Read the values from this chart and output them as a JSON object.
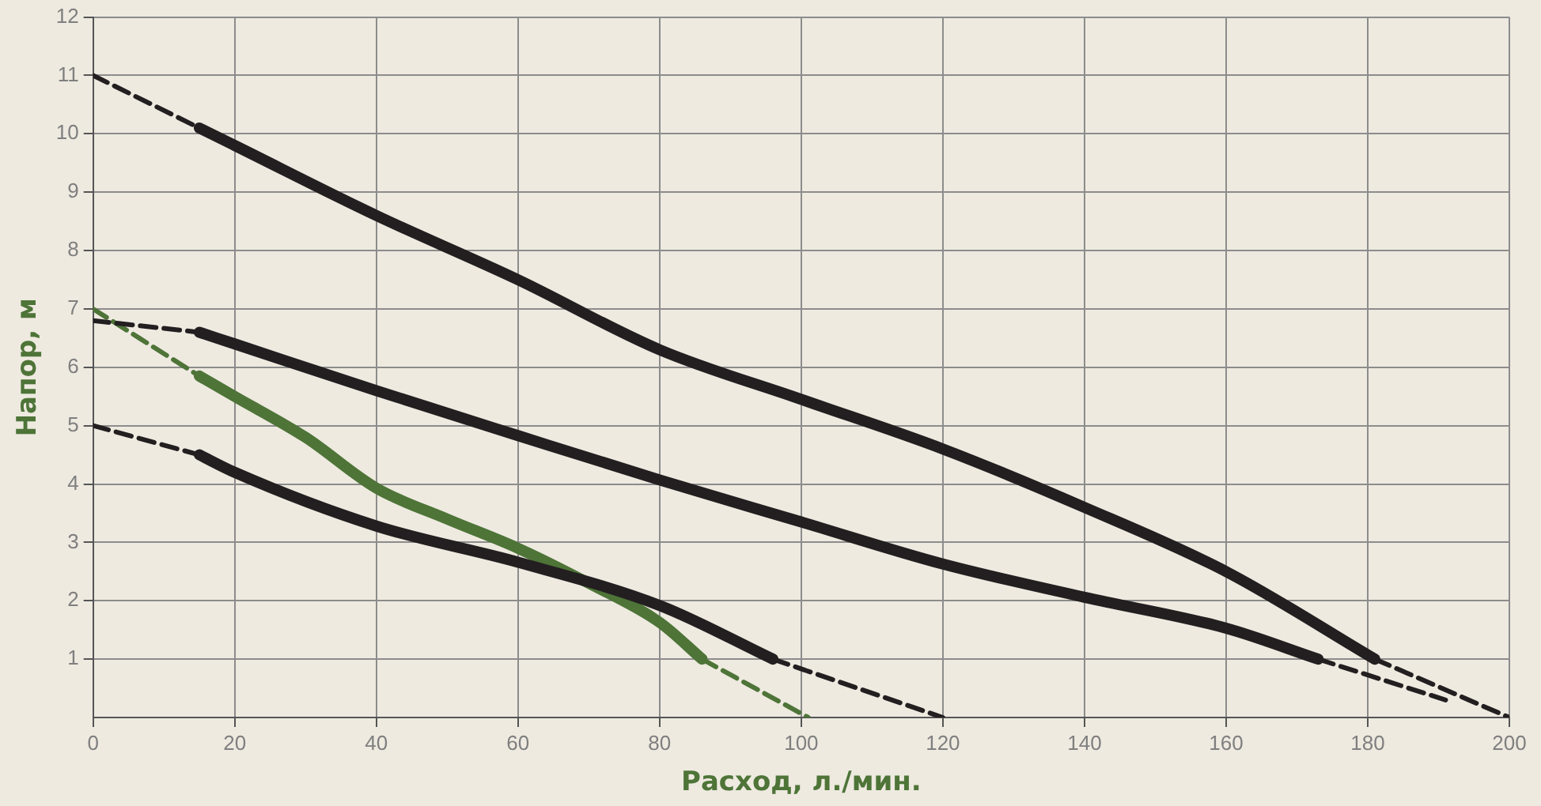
{
  "chart_data": {
    "type": "line",
    "xlabel": "Расход, л./мин.",
    "ylabel": "Напор, м",
    "xlim": [
      0,
      200
    ],
    "xticks": [
      0,
      20,
      40,
      60,
      80,
      100,
      120,
      140,
      160,
      180,
      200
    ],
    "ylim": [
      0,
      12
    ],
    "yticks": [
      1,
      2,
      3,
      4,
      5,
      6,
      7,
      8,
      9,
      10,
      11,
      12
    ],
    "grid": true,
    "legend": false,
    "marker": "none",
    "series": [
      {
        "color": "#231f20",
        "line_style": "dashed",
        "x": [
          0,
          15
        ],
        "values": [
          11,
          10.1
        ]
      },
      {
        "color": "#231f20",
        "line_style": "solid",
        "x": [
          15,
          20,
          40,
          60,
          80,
          100,
          120,
          140,
          160,
          181
        ],
        "values": [
          10.1,
          9.8,
          8.6,
          7.5,
          6.3,
          5.45,
          4.6,
          3.6,
          2.5,
          1.0
        ]
      },
      {
        "color": "#231f20",
        "line_style": "dashed",
        "x": [
          181,
          200
        ],
        "values": [
          1.0,
          0
        ]
      },
      {
        "color": "#231f20",
        "line_style": "dashed",
        "x": [
          0,
          15
        ],
        "values": [
          6.8,
          6.6
        ]
      },
      {
        "color": "#231f20",
        "line_style": "solid",
        "x": [
          15,
          20,
          40,
          60,
          80,
          100,
          120,
          140,
          160,
          173
        ],
        "values": [
          6.6,
          6.4,
          5.6,
          4.83,
          4.07,
          3.35,
          2.63,
          2.06,
          1.53,
          1.0
        ]
      },
      {
        "color": "#231f20",
        "line_style": "dashed",
        "x": [
          173,
          191
        ],
        "values": [
          1.0,
          0.3
        ]
      },
      {
        "color": "#231f20",
        "line_style": "dashed",
        "x": [
          0,
          15
        ],
        "values": [
          5,
          4.5
        ]
      },
      {
        "color": "#231f20",
        "line_style": "solid",
        "x": [
          15,
          20,
          40,
          60,
          80,
          96
        ],
        "values": [
          4.5,
          4.2,
          3.28,
          2.66,
          1.92,
          1.0
        ]
      },
      {
        "color": "#231f20",
        "line_style": "dashed",
        "x": [
          96,
          120
        ],
        "values": [
          1.0,
          0
        ]
      },
      {
        "color": "#4e7438",
        "line_style": "dashed",
        "x": [
          0,
          15
        ],
        "values": [
          7,
          5.85
        ]
      },
      {
        "color": "#4e7438",
        "line_style": "solid",
        "x": [
          15,
          20,
          30,
          40,
          50,
          60,
          70,
          80,
          86
        ],
        "values": [
          5.85,
          5.5,
          4.8,
          3.93,
          3.4,
          2.9,
          2.3,
          1.63,
          1.0
        ]
      },
      {
        "color": "#4e7438",
        "line_style": "dashed",
        "x": [
          86,
          101
        ],
        "values": [
          1.0,
          0
        ]
      }
    ]
  }
}
